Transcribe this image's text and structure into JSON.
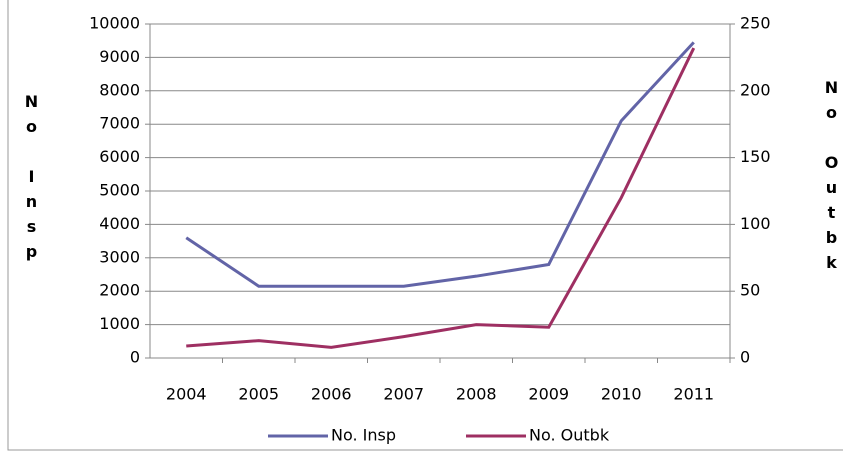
{
  "chart_data": {
    "type": "line",
    "categories": [
      "2004",
      "2005",
      "2006",
      "2007",
      "2008",
      "2009",
      "2010",
      "2011"
    ],
    "series": [
      {
        "name": "No. Insp",
        "color": "#6264a7",
        "values": [
          3600,
          2150,
          2150,
          2150,
          2450,
          2800,
          7100,
          9450
        ]
      },
      {
        "name": "No. Outbk",
        "color": "#9e2f62",
        "axis": "y2",
        "values": [
          9,
          13,
          8,
          16,
          25,
          23,
          120,
          232
        ]
      }
    ],
    "ylabel": "No Insp",
    "y2label": "No Outbk",
    "ylim": [
      0,
      10000
    ],
    "yticks": [
      0,
      1000,
      2000,
      3000,
      4000,
      5000,
      6000,
      7000,
      8000,
      9000,
      10000
    ],
    "y2lim": [
      0,
      250
    ],
    "y2ticks": [
      0,
      50,
      100,
      150,
      200,
      250
    ],
    "grid": true,
    "legend": "bottom"
  }
}
